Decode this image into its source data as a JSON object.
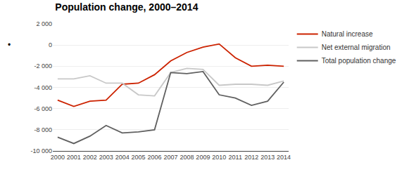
{
  "chart_data": {
    "type": "line",
    "title": "Population change, 2000–2014",
    "x": [
      2000,
      2001,
      2002,
      2003,
      2004,
      2005,
      2006,
      2007,
      2008,
      2009,
      2010,
      2011,
      2012,
      2013,
      2014
    ],
    "series": [
      {
        "name": "Natural increase",
        "color": "#cc2200",
        "values": [
          -5200,
          -5800,
          -5300,
          -5200,
          -3700,
          -3600,
          -2800,
          -1500,
          -700,
          -200,
          100,
          -1200,
          -2000,
          -1900,
          -2000
        ]
      },
      {
        "name": "Net external migration",
        "color": "#c8c8c8",
        "values": [
          -3200,
          -3200,
          -2900,
          -3600,
          -3600,
          -4700,
          -4800,
          -2600,
          -2200,
          -2300,
          -3800,
          -3700,
          -3700,
          -3800,
          -3400
        ]
      },
      {
        "name": "Total population change",
        "color": "#606060",
        "values": [
          -8700,
          -9300,
          -8600,
          -7600,
          -8300,
          -8200,
          -8000,
          -2600,
          -2700,
          -2500,
          -4700,
          -5000,
          -5700,
          -5300,
          -3500
        ]
      }
    ],
    "xlim": [
      1999.7,
      2014.3
    ],
    "xticks": [
      2000,
      2001,
      2002,
      2003,
      2004,
      2005,
      2006,
      2007,
      2008,
      2009,
      2010,
      2011,
      2012,
      2013,
      2014
    ],
    "ylim": [
      -10000,
      2000
    ],
    "yticks": [
      {
        "value": -10000,
        "label": "-10 000"
      },
      {
        "value": -8000,
        "label": "-8 000"
      },
      {
        "value": -6000,
        "label": "-6 000"
      },
      {
        "value": -4000,
        "label": "-4 000"
      },
      {
        "value": -2000,
        "label": "-2 000"
      },
      0,
      {
        "value": 2000,
        "label": "2 000"
      }
    ],
    "grid": "y",
    "legend": "right",
    "annotations": [
      {
        "text": "•",
        "y": 0
      }
    ]
  }
}
